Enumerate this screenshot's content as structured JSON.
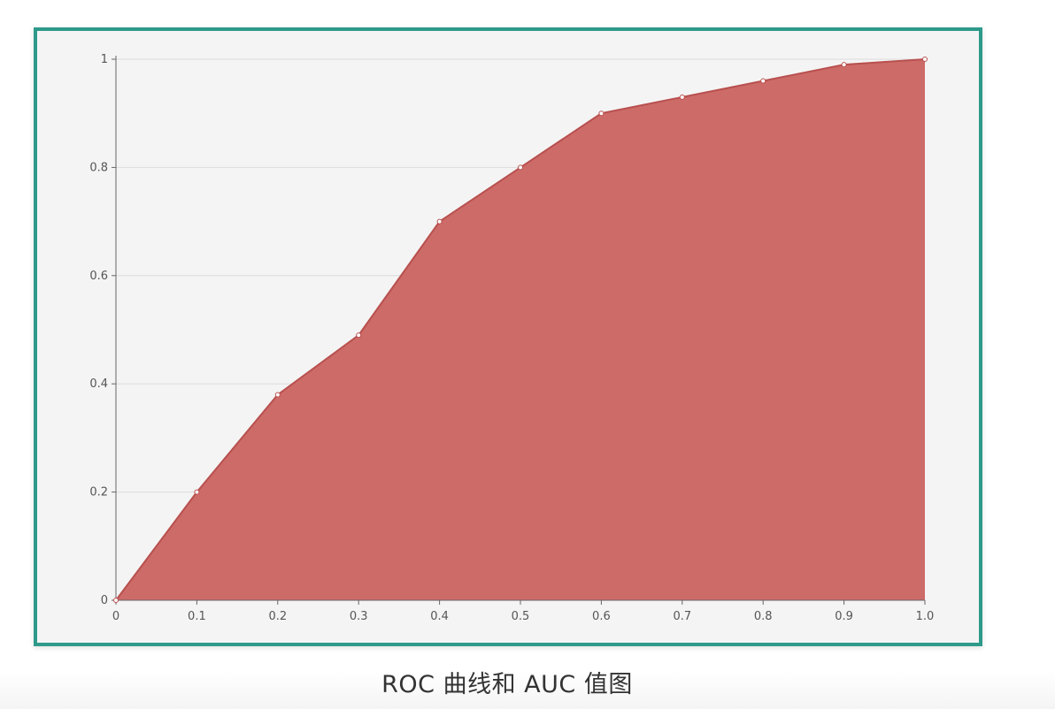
{
  "caption": "ROC 曲线和 AUC 值图",
  "colors": {
    "frame_border": "#2e9a8a",
    "area_fill": "#cd6b69",
    "line": "#b8504e",
    "axis": "#666666",
    "grid": "#dcdcdc",
    "background": "#f4f4f4"
  },
  "chart_data": {
    "type": "area",
    "title": "",
    "xlabel": "",
    "ylabel": "",
    "x": [
      0,
      0.1,
      0.2,
      0.3,
      0.4,
      0.5,
      0.6,
      0.7,
      0.8,
      0.9,
      1.0
    ],
    "series": [
      {
        "values": [
          0,
          0.2,
          0.38,
          0.49,
          0.7,
          0.8,
          0.9,
          0.93,
          0.96,
          0.99,
          1.0
        ]
      }
    ],
    "xlim": [
      0,
      1.0
    ],
    "ylim": [
      0,
      1
    ],
    "x_ticks": [
      "0",
      "0.1",
      "0.2",
      "0.3",
      "0.4",
      "0.5",
      "0.6",
      "0.7",
      "0.8",
      "0.9",
      "1.0"
    ],
    "y_ticks": [
      "0",
      "0.2",
      "0.4",
      "0.6",
      "0.8",
      "1"
    ],
    "y_tick_values": [
      0,
      0.2,
      0.4,
      0.6,
      0.8,
      1
    ],
    "grid": "horizontal",
    "legend": "none"
  }
}
